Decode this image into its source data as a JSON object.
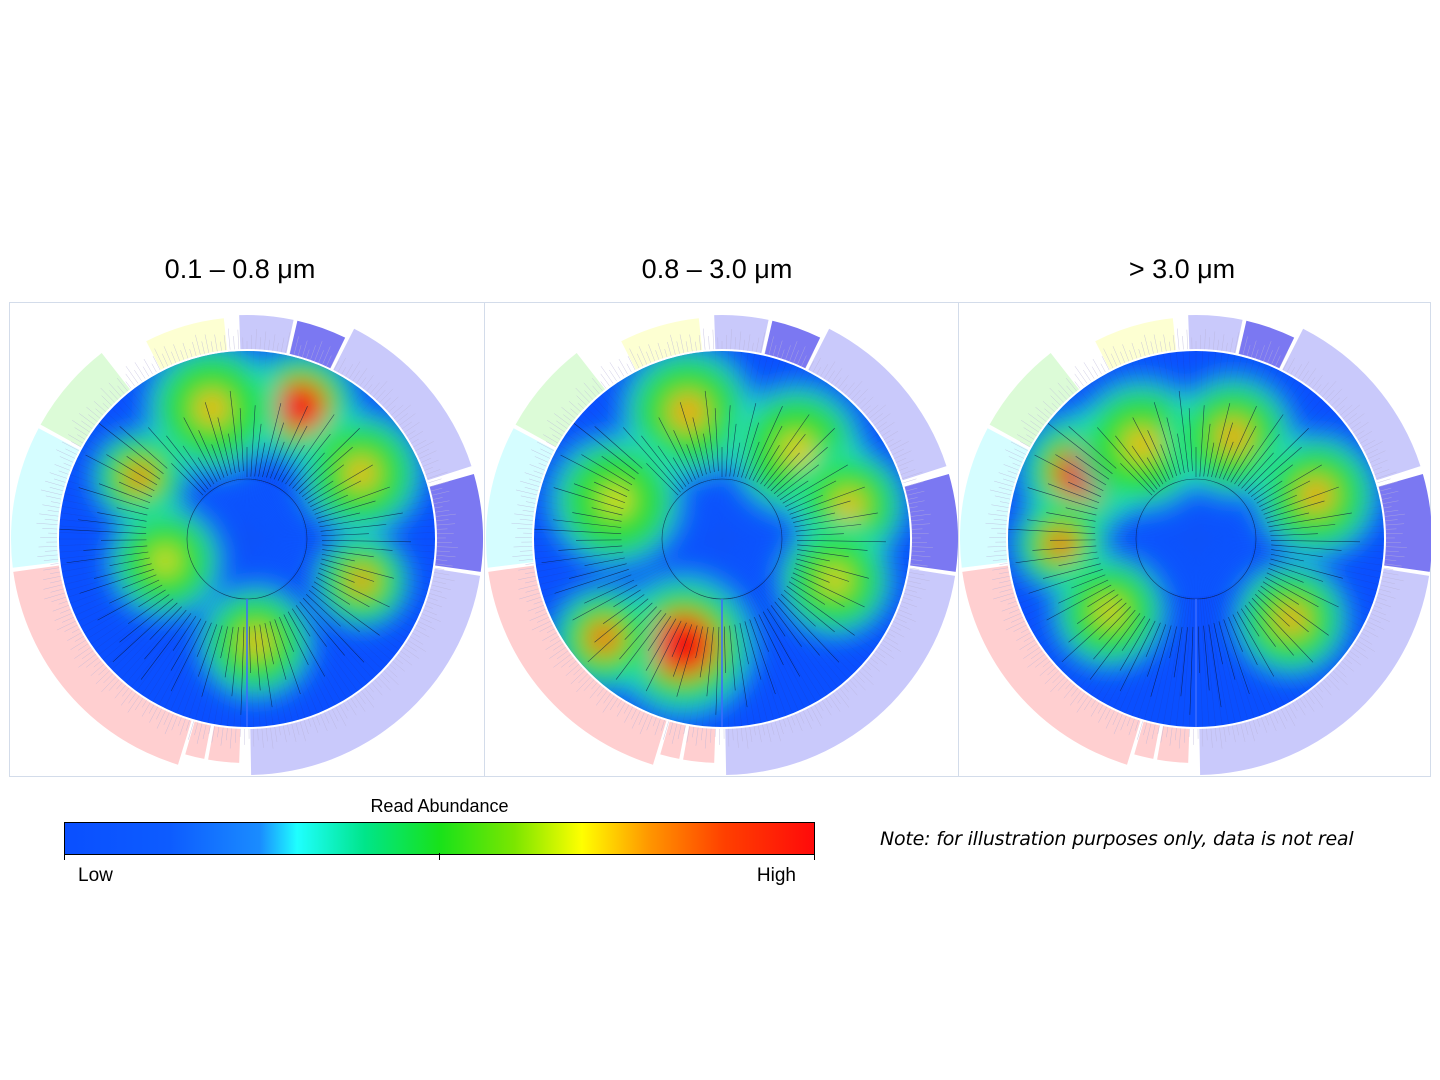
{
  "panels": [
    {
      "title": "0.1 – 0.8 μm",
      "hotspots": [
        {
          "angle": 22,
          "r": 0.76,
          "level": 1.0,
          "spread": 0.12
        },
        {
          "angle": 345,
          "r": 0.72,
          "level": 0.55,
          "spread": 0.14
        },
        {
          "angle": 300,
          "r": 0.66,
          "level": 0.7,
          "spread": 0.1
        },
        {
          "angle": 60,
          "r": 0.7,
          "level": 0.55,
          "spread": 0.13
        },
        {
          "angle": 110,
          "r": 0.65,
          "level": 0.65,
          "spread": 0.1
        },
        {
          "angle": 175,
          "r": 0.55,
          "level": 0.55,
          "spread": 0.12
        },
        {
          "angle": 255,
          "r": 0.45,
          "level": 0.45,
          "spread": 0.12
        }
      ]
    },
    {
      "title": "0.8 – 3.0 μm",
      "hotspots": [
        {
          "angle": 200,
          "r": 0.6,
          "level": 1.0,
          "spread": 0.15
        },
        {
          "angle": 230,
          "r": 0.82,
          "level": 0.75,
          "spread": 0.11
        },
        {
          "angle": 345,
          "r": 0.7,
          "level": 0.6,
          "spread": 0.14
        },
        {
          "angle": 40,
          "r": 0.62,
          "level": 0.5,
          "spread": 0.14
        },
        {
          "angle": 75,
          "r": 0.7,
          "level": 0.55,
          "spread": 0.12
        },
        {
          "angle": 110,
          "r": 0.64,
          "level": 0.5,
          "spread": 0.12
        },
        {
          "angle": 290,
          "r": 0.6,
          "level": 0.45,
          "spread": 0.14
        }
      ]
    },
    {
      "title": "> 3.0 μm",
      "hotspots": [
        {
          "angle": 300,
          "r": 0.7,
          "level": 1.0,
          "spread": 0.13
        },
        {
          "angle": 268,
          "r": 0.72,
          "level": 0.75,
          "spread": 0.1
        },
        {
          "angle": 330,
          "r": 0.58,
          "level": 0.55,
          "spread": 0.14
        },
        {
          "angle": 20,
          "r": 0.58,
          "level": 0.6,
          "spread": 0.13
        },
        {
          "angle": 70,
          "r": 0.68,
          "level": 0.6,
          "spread": 0.13
        },
        {
          "angle": 130,
          "r": 0.66,
          "level": 0.6,
          "spread": 0.12
        },
        {
          "angle": 230,
          "r": 0.6,
          "level": 0.5,
          "spread": 0.12
        }
      ]
    }
  ],
  "legend": {
    "title": "Read Abundance",
    "low_label": "Low",
    "high_label": "High"
  },
  "note": "Note: for illustration purposes only, data is not real",
  "colors": {
    "background_blue": "#0a4fff",
    "clade_purple": "#c9c9fb",
    "clade_purple_dark": "#7b78f2",
    "clade_pink": "#ffcfd0",
    "clade_cyan": "#d5fdff",
    "clade_green": "#dcfbd7",
    "clade_yellow": "#fdffd2"
  }
}
